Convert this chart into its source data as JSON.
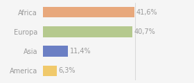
{
  "categories": [
    "Africa",
    "Europa",
    "Asia",
    "America"
  ],
  "values": [
    41.6,
    40.7,
    11.4,
    6.3
  ],
  "bar_colors": [
    "#e8a87c",
    "#b5c98e",
    "#6b7fc4",
    "#f0c96b"
  ],
  "labels": [
    "41,6%",
    "40,7%",
    "11,4%",
    "6,3%"
  ],
  "background_color": "#f5f5f5",
  "xlim": [
    0,
    58
  ],
  "bar_height": 0.55,
  "label_fontsize": 7,
  "category_fontsize": 7,
  "text_color": "#999999"
}
